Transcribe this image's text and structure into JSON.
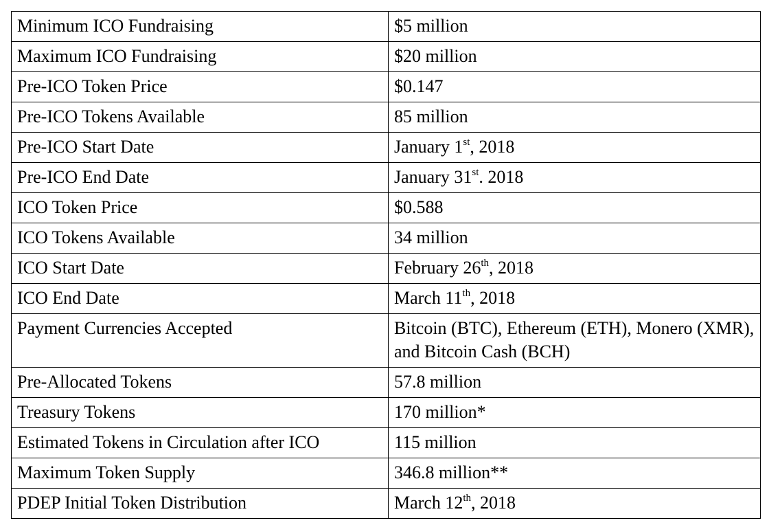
{
  "table": {
    "rows": [
      [
        "Minimum ICO Fundraising",
        "$5 million"
      ],
      [
        "Maximum ICO Fundraising",
        "$20 million"
      ],
      [
        "Pre-ICO Token Price",
        "$0.147"
      ],
      [
        "Pre-ICO Tokens Available",
        "85 million"
      ],
      [
        "Pre-ICO Start Date",
        {
          "before": "January 1",
          "sup": "st",
          "after": ", 2018"
        }
      ],
      [
        "Pre-ICO End Date",
        {
          "before": "January 31",
          "sup": "st",
          "after": ". 2018"
        }
      ],
      [
        "ICO Token Price",
        "$0.588"
      ],
      [
        "ICO Tokens Available",
        "34 million"
      ],
      [
        "ICO Start Date",
        {
          "before": "February 26",
          "sup": "th",
          "after": ", 2018"
        }
      ],
      [
        "ICO End Date",
        {
          "before": "March 11",
          "sup": "th",
          "after": ", 2018"
        }
      ],
      [
        "Payment Currencies Accepted",
        "Bitcoin (BTC), Ethereum (ETH), Monero (XMR), and Bitcoin Cash (BCH)"
      ],
      [
        "Pre-Allocated Tokens",
        "57.8 million"
      ],
      [
        "Treasury Tokens",
        "170 million*"
      ],
      [
        "Estimated Tokens in Circulation after ICO",
        "115 million"
      ],
      [
        "Maximum Token Supply",
        "346.8 million**"
      ],
      [
        "PDEP Initial Token Distribution",
        {
          "before": "March 12",
          "sup": "th",
          "after": ", 2018"
        }
      ]
    ]
  }
}
